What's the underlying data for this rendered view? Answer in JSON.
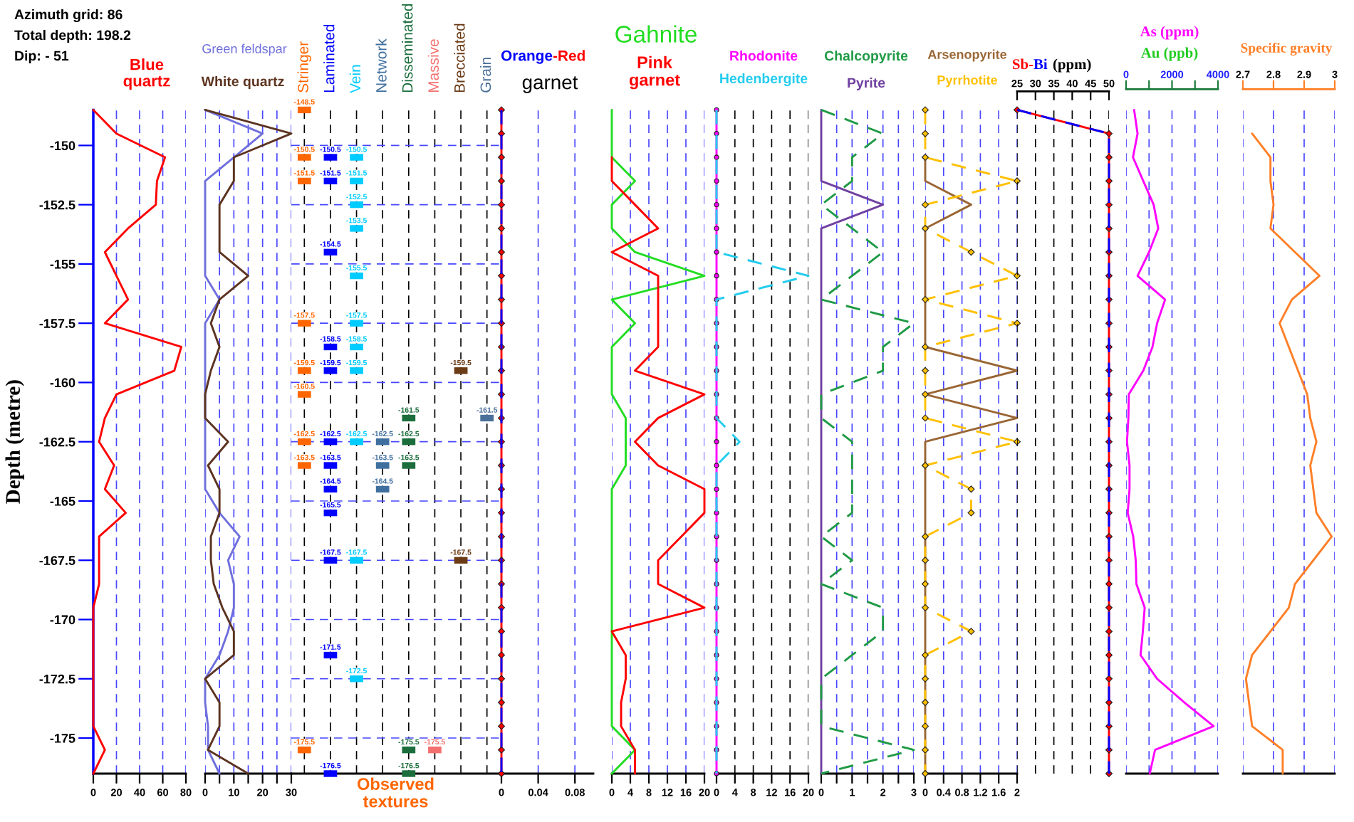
{
  "chart_data": [
    {
      "type": "line",
      "annotations": [
        "Azimuth grid: 86",
        "Total depth: 198.2",
        "Dip: - 51"
      ],
      "ylabel": "Depth (metre)",
      "xlim": [
        0,
        80
      ],
      "xticks": [
        0,
        20,
        40,
        60,
        80
      ],
      "ylim": [
        -176.5,
        -148.5
      ],
      "yticks": [
        -150,
        -152.5,
        -155,
        -157.5,
        -160,
        -162.5,
        -165,
        -167.5,
        -170,
        -172.5,
        -175
      ],
      "grid": "x",
      "series": [
        {
          "name": "Blue\nquartz",
          "color": "#ff0000",
          "x": [
            0,
            20,
            62,
            55,
            54,
            30,
            10,
            20,
            30,
            10,
            76,
            70,
            20,
            10,
            5,
            18,
            10,
            28,
            5,
            5,
            5,
            0,
            0,
            0,
            0,
            0,
            0,
            10,
            0
          ],
          "values": [
            -148.5,
            -149.5,
            -150.5,
            -151.5,
            -152.5,
            -153.5,
            -154.5,
            -155.5,
            -156.5,
            -157.5,
            -158.5,
            -159.5,
            -160.5,
            -161.5,
            -162.5,
            -163.5,
            -164.5,
            -165.5,
            -166.5,
            -167.5,
            -168.5,
            -169.5,
            -170.5,
            -171.5,
            -172.5,
            -173.5,
            -174.5,
            -175.5,
            -176.5
          ]
        }
      ]
    },
    {
      "type": "line",
      "xlim": [
        0,
        30
      ],
      "xticks": [
        0,
        {
          "value": 5,
          "label": null
        },
        10,
        {
          "value": 15,
          "label": null
        },
        20,
        {
          "value": 25,
          "label": null
        },
        30
      ],
      "ylim": [
        -176.5,
        -148.5
      ],
      "grid": "x",
      "tick_labels": "x",
      "series": [
        {
          "name": "Green feldspar",
          "color": "#6f6fdc",
          "x": [
            0,
            20,
            10,
            0,
            0,
            0,
            0,
            0,
            5,
            0,
            0,
            0,
            0,
            0,
            0,
            0,
            0,
            5,
            12,
            8,
            10,
            10,
            8,
            5,
            0,
            0,
            1,
            1,
            5
          ],
          "values": [
            -148.5,
            -149.5,
            -150.5,
            -151.5,
            -152.5,
            -153.5,
            -154.5,
            -155.5,
            -156.5,
            -157.5,
            -158.5,
            -159.5,
            -160.5,
            -161.5,
            -162.5,
            -163.5,
            -164.5,
            -165.5,
            -166.5,
            -167.5,
            -168.5,
            -169.5,
            -170.5,
            -171.5,
            -172.5,
            -173.5,
            -174.5,
            -175.5,
            -176.5
          ]
        },
        {
          "name": "White quartz",
          "color": "#5c3420",
          "x": [
            0,
            30,
            10,
            10,
            5,
            5,
            5,
            15,
            5,
            2,
            5,
            2,
            0,
            0,
            8,
            1,
            5,
            5,
            2,
            2,
            3,
            6,
            10,
            10,
            0,
            5,
            5,
            1,
            15
          ],
          "values": [
            -148.5,
            -149.5,
            -150.5,
            -151.5,
            -152.5,
            -153.5,
            -154.5,
            -155.5,
            -156.5,
            -157.5,
            -158.5,
            -159.5,
            -160.5,
            -161.5,
            -162.5,
            -163.5,
            -164.5,
            -165.5,
            -166.5,
            -167.5,
            -168.5,
            -169.5,
            -170.5,
            -171.5,
            -172.5,
            -173.5,
            -174.5,
            -175.5,
            -176.5
          ]
        }
      ]
    },
    {
      "type": "scatter",
      "categories": [
        "Stringer",
        "Laminated",
        "Vein",
        "Network",
        "Disseminated",
        "Massive",
        "Brecciated",
        "Grain"
      ],
      "xlabel": "Observed\ntextures",
      "ylim": [
        -176.5,
        -148.5
      ],
      "yticks": [
        -150,
        -152.5,
        -155,
        -157.5,
        -160,
        -162.5,
        -165,
        -167.5,
        -170,
        -172.5,
        -175
      ],
      "grid": true,
      "tick_labels": "x",
      "series": [
        {
          "color": "#ff6600",
          "x": [
            "Stringer",
            "Stringer",
            "Stringer",
            "Stringer",
            "Stringer",
            "Stringer",
            "Stringer",
            "Stringer",
            "Stringer"
          ],
          "values": [
            -148.5,
            -150.5,
            -151.5,
            -157.5,
            -159.5,
            -160.5,
            -162.5,
            -163.5,
            -175.5
          ],
          "value_labels": [
            "-148.5",
            "-150.5",
            "-151.5",
            "-157.5",
            "-159.5",
            "-160.5",
            "-162.5",
            "-163.5",
            "-175.5"
          ]
        },
        {
          "color": "#0000ff",
          "x": [
            "Laminated",
            "Laminated",
            "Laminated",
            "Laminated",
            "Laminated",
            "Laminated",
            "Laminated",
            "Laminated",
            "Laminated",
            "Laminated",
            "Laminated",
            "Laminated"
          ],
          "values": [
            -150.5,
            -151.5,
            -154.5,
            -158.5,
            -159.5,
            -162.5,
            -163.5,
            -164.5,
            -165.5,
            -167.5,
            -171.5,
            -176.5
          ],
          "value_labels": [
            "-150.5",
            "-151.5",
            "-154.5",
            "-158.5",
            "-159.5",
            "-162.5",
            "-163.5",
            "-164.5",
            "-165.5",
            "-167.5",
            "-171.5",
            "-176.5"
          ]
        },
        {
          "color": "#00ccff",
          "x": [
            "Vein",
            "Vein",
            "Vein",
            "Vein",
            "Vein",
            "Vein",
            "Vein",
            "Vein",
            "Vein",
            "Vein",
            "Vein"
          ],
          "values": [
            -150.5,
            -151.5,
            -152.5,
            -153.5,
            -155.5,
            -157.5,
            -158.5,
            -159.5,
            -162.5,
            -167.5,
            -172.5
          ],
          "value_labels": [
            "-150.5",
            "-151.5",
            "-152.5",
            "-153.5",
            "-155.5",
            "-157.5",
            "-158.5",
            "-159.5",
            "-162.5",
            "-167.5",
            "-172.5"
          ]
        },
        {
          "color": "#3f6f9f",
          "x": [
            "Network",
            "Network",
            "Network"
          ],
          "values": [
            -162.5,
            -163.5,
            -164.5
          ],
          "value_labels": [
            "-162.5",
            "-163.5",
            "-164.5"
          ]
        },
        {
          "color": "#1b6e3c",
          "x": [
            "Disseminated",
            "Disseminated",
            "Disseminated",
            "Disseminated",
            "Disseminated"
          ],
          "values": [
            -161.5,
            -162.5,
            -163.5,
            -175.5,
            -176.5
          ],
          "value_labels": [
            "-161.5",
            "-162.5",
            "-163.5",
            "-175.5",
            "-176.5"
          ]
        },
        {
          "color": "#f47070",
          "x": [
            "Massive"
          ],
          "values": [
            -175.5
          ],
          "value_labels": [
            "-175.5"
          ]
        },
        {
          "color": "#6b3b16",
          "x": [
            "Brecciated",
            "Brecciated"
          ],
          "values": [
            -159.5,
            -167.5
          ],
          "value_labels": [
            "-159.5",
            "-167.5"
          ]
        },
        {
          "color": "#4a6f9a",
          "x": [
            "Grain"
          ],
          "values": [
            -161.5
          ],
          "value_labels": [
            "-161.5"
          ]
        }
      ]
    },
    {
      "type": "line",
      "title": "garnet",
      "xlim": [
        0,
        0.1
      ],
      "xticks": [
        0,
        0.04,
        0.08
      ],
      "ylim": [
        -176.5,
        -148.5
      ],
      "grid": "x",
      "tick_labels": "x",
      "series": [
        {
          "name": "Orange",
          "color": "#0000ff",
          "line_style": "dashed",
          "x": [
            0,
            0,
            0,
            0,
            0,
            0,
            0,
            0,
            0,
            0,
            0,
            0,
            0,
            0,
            0,
            0,
            0,
            0,
            0,
            0,
            0,
            0,
            0,
            0,
            0,
            0,
            0,
            0,
            0
          ],
          "values": [
            -148.5,
            -149.5,
            -150.5,
            -151.5,
            -152.5,
            -153.5,
            -154.5,
            -155.5,
            -156.5,
            -157.5,
            -158.5,
            -159.5,
            -160.5,
            -161.5,
            -162.5,
            -163.5,
            -164.5,
            -165.5,
            -166.5,
            -167.5,
            -168.5,
            -169.5,
            -170.5,
            -171.5,
            -172.5,
            -173.5,
            -174.5,
            -175.5,
            -176.5
          ]
        },
        {
          "name": "-Red",
          "color": "#ff0000",
          "marker": "diamond",
          "x": [
            0,
            0,
            0,
            0,
            0,
            0,
            0,
            0,
            0,
            0,
            0,
            0,
            0,
            0,
            0,
            0,
            0,
            0,
            0,
            0,
            0,
            0,
            0,
            0,
            0,
            0,
            0,
            0,
            0
          ],
          "values": [
            -148.5,
            -149.5,
            -150.5,
            -151.5,
            -152.5,
            -153.5,
            -154.5,
            -155.5,
            -156.5,
            -157.5,
            -158.5,
            -159.5,
            -160.5,
            -161.5,
            -162.5,
            -163.5,
            -164.5,
            -165.5,
            -166.5,
            -167.5,
            -168.5,
            -169.5,
            -170.5,
            -171.5,
            -172.5,
            -173.5,
            -174.5,
            -175.5,
            -176.5
          ]
        }
      ]
    },
    {
      "type": "line",
      "xlim": [
        0,
        20
      ],
      "xticks": [
        0,
        4,
        8,
        12,
        16,
        20
      ],
      "ylim": [
        -176.5,
        -148.5
      ],
      "grid": "x",
      "tick_labels": "x",
      "series": [
        {
          "name": "Gahnite",
          "color": "#22dd22",
          "x": [
            0,
            0,
            0,
            5,
            0,
            0,
            5,
            20,
            0,
            5,
            0,
            0,
            0,
            3,
            3,
            3,
            0,
            0,
            0,
            0,
            0,
            0,
            0,
            0,
            0,
            0,
            0,
            5,
            0
          ],
          "values": [
            -148.5,
            -149.5,
            -150.5,
            -151.5,
            -152.5,
            -153.5,
            -154.5,
            -155.5,
            -156.5,
            -157.5,
            -158.5,
            -159.5,
            -160.5,
            -161.5,
            -162.5,
            -163.5,
            -164.5,
            -165.5,
            -166.5,
            -167.5,
            -168.5,
            -169.5,
            -170.5,
            -171.5,
            -172.5,
            -173.5,
            -174.5,
            -175.5,
            -176.5
          ]
        },
        {
          "name": "Pink\ngarnet",
          "color": "#ff0000",
          "x": [
            0,
            0,
            5,
            10,
            0,
            10,
            10,
            10,
            10,
            5,
            20,
            10,
            5,
            10,
            20,
            20,
            15,
            10,
            10,
            20,
            0,
            3,
            3,
            2,
            2,
            5,
            5
          ],
          "values": [
            -150.5,
            -151.5,
            -152.5,
            -153.5,
            -154.5,
            -155.5,
            -156.5,
            -157.5,
            -158.5,
            -159.5,
            -160.5,
            -161.5,
            -162.5,
            -163.5,
            -164.5,
            -165.5,
            -166.5,
            -167.5,
            -168.5,
            -169.5,
            -170.5,
            -171.5,
            -172.5,
            -173.5,
            -174.5,
            -175.5,
            -176.5
          ]
        }
      ]
    },
    {
      "type": "line",
      "xlim": [
        0,
        20
      ],
      "xticks": [
        0,
        4,
        8,
        12,
        16,
        20
      ],
      "ylim": [
        -176.5,
        -148.5
      ],
      "grid": "x",
      "tick_labels": "x",
      "series": [
        {
          "name": "Rhodonite",
          "color": "#ff00ff",
          "marker": "circle",
          "x": [
            0,
            0,
            0,
            0,
            0,
            0,
            0,
            0,
            0,
            0,
            0,
            0,
            0,
            0,
            0,
            0,
            0,
            0,
            0,
            0,
            0,
            0,
            0,
            0,
            0,
            0,
            0,
            0,
            0
          ],
          "values": [
            -148.5,
            -149.5,
            -150.5,
            -151.5,
            -152.5,
            -153.5,
            -154.5,
            -155.5,
            -156.5,
            -157.5,
            -158.5,
            -159.5,
            -160.5,
            -161.5,
            -162.5,
            -163.5,
            -164.5,
            -165.5,
            -166.5,
            -167.5,
            -168.5,
            -169.5,
            -170.5,
            -171.5,
            -172.5,
            -173.5,
            -174.5,
            -175.5,
            -176.5
          ]
        },
        {
          "name": "Hedenbergite",
          "color": "#22ccee",
          "line_style": "dashed",
          "x": [
            0,
            0,
            0,
            0,
            0,
            0,
            0,
            20,
            0,
            0,
            0,
            0,
            0,
            0,
            5,
            0,
            0,
            0,
            0,
            0,
            0,
            0,
            0,
            0,
            0,
            0,
            0,
            0,
            0
          ],
          "values": [
            -148.5,
            -149.5,
            -150.5,
            -151.5,
            -152.5,
            -153.5,
            -154.5,
            -155.5,
            -156.5,
            -157.5,
            -158.5,
            -159.5,
            -160.5,
            -161.5,
            -162.5,
            -163.5,
            -164.5,
            -165.5,
            -166.5,
            -167.5,
            -168.5,
            -169.5,
            -170.5,
            -171.5,
            -172.5,
            -173.5,
            -174.5,
            -175.5,
            -176.5
          ]
        }
      ]
    },
    {
      "type": "line",
      "xlim": [
        0,
        3
      ],
      "xticks": [
        0,
        {
          "value": 0.5,
          "label": null
        },
        1,
        {
          "value": 1.5,
          "label": null
        },
        2,
        {
          "value": 2.5,
          "label": null
        },
        3
      ],
      "ylim": [
        -176.5,
        -148.5
      ],
      "grid": "x",
      "tick_labels": "x",
      "series": [
        {
          "name": "Chalcopyrite",
          "color": "#1f9a45",
          "line_style": "dashed",
          "x": [
            0,
            2,
            1,
            1,
            0,
            1,
            2,
            1,
            0,
            3,
            2,
            2,
            0,
            0,
            1,
            1,
            1,
            1,
            0,
            1,
            0,
            2,
            2,
            1,
            0,
            0,
            0,
            3,
            0
          ],
          "values": [
            -148.5,
            -149.5,
            -150.5,
            -151.5,
            -152.5,
            -153.5,
            -154.5,
            -155.5,
            -156.5,
            -157.5,
            -158.5,
            -159.5,
            -160.5,
            -161.5,
            -162.5,
            -163.5,
            -164.5,
            -165.5,
            -166.5,
            -167.5,
            -168.5,
            -169.5,
            -170.5,
            -171.5,
            -172.5,
            -173.5,
            -174.5,
            -175.5,
            -176.5
          ]
        },
        {
          "name": "Pyrite",
          "color": "#7040a0",
          "x": [
            0,
            0,
            0,
            0,
            2,
            0,
            0,
            0,
            0,
            0,
            0,
            0,
            0,
            0,
            0,
            0,
            0,
            0,
            0,
            0,
            0,
            0,
            0,
            0,
            0,
            0,
            0,
            0,
            0
          ],
          "values": [
            -148.5,
            -149.5,
            -150.5,
            -151.5,
            -152.5,
            -153.5,
            -154.5,
            -155.5,
            -156.5,
            -157.5,
            -158.5,
            -159.5,
            -160.5,
            -161.5,
            -162.5,
            -163.5,
            -164.5,
            -165.5,
            -166.5,
            -167.5,
            -168.5,
            -169.5,
            -170.5,
            -171.5,
            -172.5,
            -173.5,
            -174.5,
            -175.5,
            -176.5
          ]
        }
      ]
    },
    {
      "type": "line",
      "xlim": [
        0,
        2
      ],
      "xticks": [
        0,
        0.4,
        0.8,
        1.2,
        1.6,
        2
      ],
      "ylim": [
        -176.5,
        -148.5
      ],
      "grid": "x",
      "tick_labels": "x",
      "series": [
        {
          "name": "Arsenopyrite",
          "color": "#9a6634",
          "x": [
            0,
            0,
            1,
            0,
            0,
            0,
            0,
            0,
            0,
            2,
            0,
            2,
            0,
            0,
            0,
            0,
            0,
            0,
            0,
            0,
            0,
            0,
            0,
            0,
            0,
            0,
            0
          ],
          "values": [
            -150.5,
            -151.5,
            -152.5,
            -153.5,
            -154.5,
            -155.5,
            -156.5,
            -157.5,
            -158.5,
            -159.5,
            -160.5,
            -161.5,
            -162.5,
            -163.5,
            -164.5,
            -165.5,
            -166.5,
            -167.5,
            -168.5,
            -169.5,
            -170.5,
            -171.5,
            -172.5,
            -173.5,
            -174.5,
            -175.5,
            -176.5
          ]
        },
        {
          "name": "Pyrrhotite",
          "color": "#ffc000",
          "line_style": "dashed",
          "marker": "diamond",
          "x": [
            0,
            0,
            0,
            2,
            0,
            0,
            1,
            2,
            0,
            2,
            0,
            0,
            0,
            0,
            2,
            0,
            1,
            1,
            0,
            0,
            0,
            0,
            1,
            0,
            0,
            0,
            0,
            0,
            0
          ],
          "values": [
            -148.5,
            -149.5,
            -150.5,
            -151.5,
            -152.5,
            -153.5,
            -154.5,
            -155.5,
            -156.5,
            -157.5,
            -158.5,
            -159.5,
            -160.5,
            -161.5,
            -162.5,
            -163.5,
            -164.5,
            -165.5,
            -166.5,
            -167.5,
            -168.5,
            -169.5,
            -170.5,
            -171.5,
            -172.5,
            -173.5,
            -174.5,
            -175.5,
            -176.5
          ]
        }
      ]
    },
    {
      "type": "line",
      "title": "(ppm)",
      "xlim": [
        25,
        50
      ],
      "xticks": [
        25,
        30,
        35,
        40,
        45,
        50
      ],
      "ylim": [
        -176.5,
        -148.5
      ],
      "grid": "x",
      "tick_labels": "x",
      "series": [
        {
          "name": "Sb-",
          "color": "#ff0000",
          "marker": "diamond",
          "x": [
            25,
            50,
            50,
            50,
            50,
            50,
            50,
            50,
            50,
            50,
            50,
            50,
            50,
            50,
            50,
            50,
            50,
            50,
            50,
            50,
            50,
            50,
            50,
            50,
            50,
            50,
            50,
            50,
            50
          ],
          "values": [
            -148.5,
            -149.5,
            -150.5,
            -151.5,
            -152.5,
            -153.5,
            -154.5,
            -155.5,
            -156.5,
            -157.5,
            -158.5,
            -159.5,
            -160.5,
            -161.5,
            -162.5,
            -163.5,
            -164.5,
            -165.5,
            -166.5,
            -167.5,
            -168.5,
            -169.5,
            -170.5,
            -171.5,
            -172.5,
            -173.5,
            -174.5,
            -175.5,
            -176.5
          ]
        },
        {
          "name": "Bi",
          "color": "#0000ff",
          "line_style": "dashed",
          "x": [
            25,
            50,
            50,
            50,
            50,
            50,
            50,
            50,
            50,
            50,
            50,
            50,
            50,
            50,
            50,
            50,
            50,
            50,
            50,
            50,
            50,
            50,
            50,
            50,
            50,
            50,
            50,
            50,
            50
          ],
          "values": [
            -148.5,
            -149.5,
            -150.5,
            -151.5,
            -152.5,
            -153.5,
            -154.5,
            -155.5,
            -156.5,
            -157.5,
            -158.5,
            -159.5,
            -160.5,
            -161.5,
            -162.5,
            -163.5,
            -164.5,
            -165.5,
            -166.5,
            -167.5,
            -168.5,
            -169.5,
            -170.5,
            -171.5,
            -172.5,
            -173.5,
            -174.5,
            -175.5,
            -176.5
          ]
        }
      ]
    },
    {
      "type": "line",
      "xlim": [
        0,
        4000
      ],
      "xticks": [
        0,
        {
          "value": 1000,
          "label": null
        },
        2000,
        {
          "value": 3000,
          "label": null
        },
        4000
      ],
      "ylim": [
        -176.5,
        -148.5
      ],
      "grid": "x",
      "tick_labels": "x",
      "series": [
        {
          "name": "As (ppm)",
          "color": "#ff00ff",
          "x": [
            350,
            500,
            300,
            750,
            1200,
            1400,
            1000,
            500,
            1700,
            1350,
            1150,
            750,
            120,
            100,
            40,
            150,
            150,
            70,
            310,
            420,
            450,
            810,
            730,
            630,
            1350,
            2540,
            3810,
            1260,
            1030
          ],
          "values": [
            -148.5,
            -149.5,
            -150.5,
            -151.5,
            -152.5,
            -153.5,
            -154.5,
            -155.5,
            -156.5,
            -157.5,
            -158.5,
            -159.5,
            -160.5,
            -161.5,
            -162.5,
            -163.5,
            -164.5,
            -165.5,
            -166.5,
            -167.5,
            -168.5,
            -169.5,
            -170.5,
            -171.5,
            -172.5,
            -173.5,
            -174.5,
            -175.5,
            -176.5
          ]
        },
        {
          "name": "Au (ppb)",
          "color": "#22cc22"
        }
      ]
    },
    {
      "type": "line",
      "xlim": [
        2.7,
        3
      ],
      "xticks": [
        2.7,
        2.8,
        2.9,
        3
      ],
      "ylim": [
        -176.5,
        -148.5
      ],
      "grid": "x",
      "tick_labels": "x",
      "series": [
        {
          "name": "Specific gravity",
          "color": "#ff7f27",
          "x": [
            2.73,
            2.79,
            2.79,
            2.8,
            2.79,
            2.87,
            2.95,
            2.86,
            2.82,
            2.85,
            2.88,
            2.91,
            2.92,
            2.94,
            2.92,
            2.93,
            2.94,
            2.99,
            2.93,
            2.87,
            2.85,
            2.79,
            2.73,
            2.71,
            2.72,
            2.73,
            2.83,
            2.83
          ],
          "values": [
            -149.5,
            -150.5,
            -151.5,
            -152.5,
            -153.5,
            -154.5,
            -155.5,
            -156.5,
            -157.5,
            -158.5,
            -159.5,
            -160.5,
            -161.5,
            -162.5,
            -163.5,
            -164.5,
            -165.5,
            -166.5,
            -167.5,
            -168.5,
            -169.5,
            -170.5,
            -171.5,
            -172.5,
            -173.5,
            -174.5,
            -175.5,
            -176.5
          ]
        }
      ]
    }
  ]
}
